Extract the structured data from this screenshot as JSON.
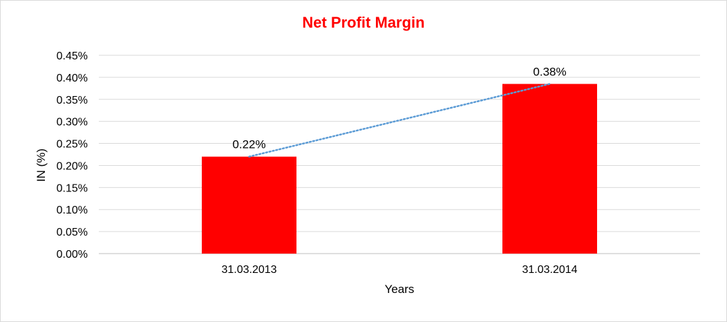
{
  "chart_data": {
    "type": "bar",
    "title": "Net Profit Margin",
    "xlabel": "Years",
    "ylabel": "IN (%)",
    "categories": [
      "31.03.2013",
      "31.03.2014"
    ],
    "values": [
      0.22,
      0.385
    ],
    "data_labels": [
      "0.22%",
      "0.38%"
    ],
    "ylim": [
      0,
      0.45
    ],
    "y_ticks": [
      0,
      0.05,
      0.1,
      0.15,
      0.2,
      0.25,
      0.3,
      0.35,
      0.4,
      0.45
    ],
    "y_tick_labels": [
      "0.00%",
      "0.05%",
      "0.10%",
      "0.15%",
      "0.20%",
      "0.25%",
      "0.30%",
      "0.35%",
      "0.40%",
      "0.45%"
    ],
    "grid": true,
    "legend": "none",
    "trendline": "linear",
    "colors": {
      "bar": "#ff0000",
      "title": "#ff0000",
      "trendline": "#5b9bd5",
      "grid": "#d9d9d9"
    }
  }
}
